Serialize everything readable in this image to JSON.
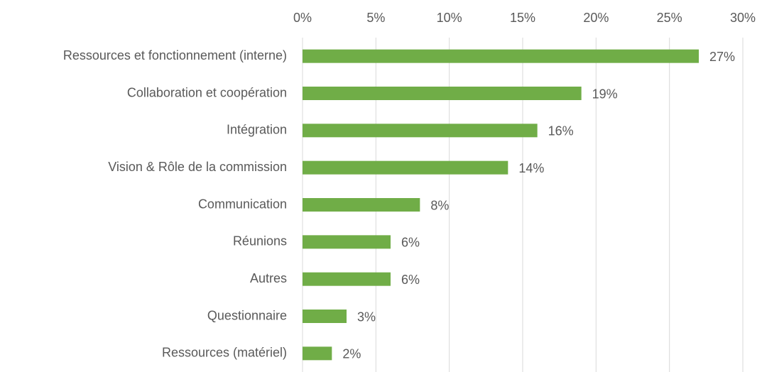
{
  "chart_data": {
    "type": "hbar",
    "categories": [
      "Ressources et fonctionnement (interne)",
      "Collaboration et coopération",
      "Intégration",
      "Vision & Rôle de la commission",
      "Communication",
      "Réunions",
      "Autres",
      "Questionnaire",
      "Ressources (matériel)"
    ],
    "values": [
      27,
      19,
      16,
      14,
      8,
      6,
      6,
      3,
      2
    ],
    "value_labels": [
      "27%",
      "19%",
      "16%",
      "14%",
      "8%",
      "6%",
      "6%",
      "3%",
      "2%"
    ],
    "color": "#70ad47",
    "xlim": [
      0,
      30
    ],
    "xticks": [
      {
        "value": 0,
        "label": "0%"
      },
      {
        "value": 5,
        "label": "5%"
      },
      {
        "value": 10,
        "label": "10%"
      },
      {
        "value": 15,
        "label": "15%"
      },
      {
        "value": 20,
        "label": "20%"
      },
      {
        "value": 25,
        "label": "25%"
      },
      {
        "value": 30,
        "label": "30%"
      }
    ],
    "grid": true
  }
}
